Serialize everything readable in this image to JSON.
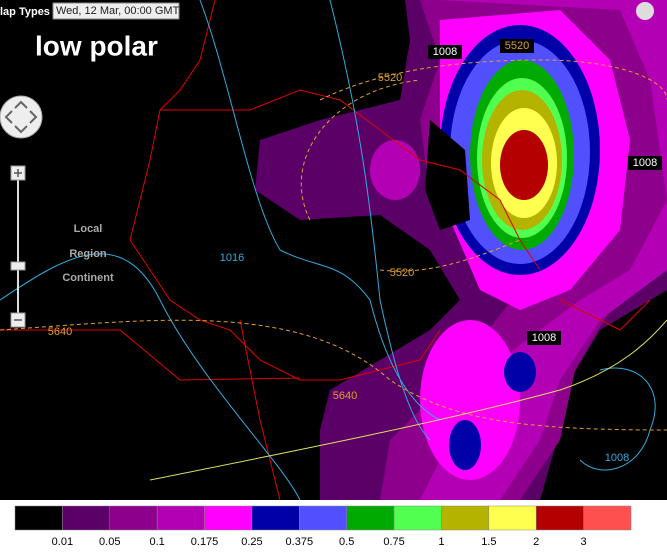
{
  "toolbar": {
    "menu": "lap Types",
    "datetime": "Wed, 12 Mar, 00:00 GMT"
  },
  "title": "low polar",
  "layer_labels": [
    "Local",
    "Region",
    "Continent"
  ],
  "contour_labels": [
    1008,
    5520,
    5520,
    1008,
    1016,
    5520,
    5640,
    1008,
    5640,
    1008
  ],
  "legend": {
    "colors": [
      "#000000",
      "#5a0066",
      "#8c008c",
      "#b400b4",
      "#ff00ff",
      "#0000a8",
      "#5050ff",
      "#00aa00",
      "#50ff50",
      "#b4b400",
      "#ffff50",
      "#b40000",
      "#ff5050"
    ],
    "ticks": [
      0.01,
      0.05,
      0.1,
      0.175,
      0.25,
      0.375,
      0.5,
      0.75,
      1,
      1.5,
      2,
      3
    ]
  }
}
